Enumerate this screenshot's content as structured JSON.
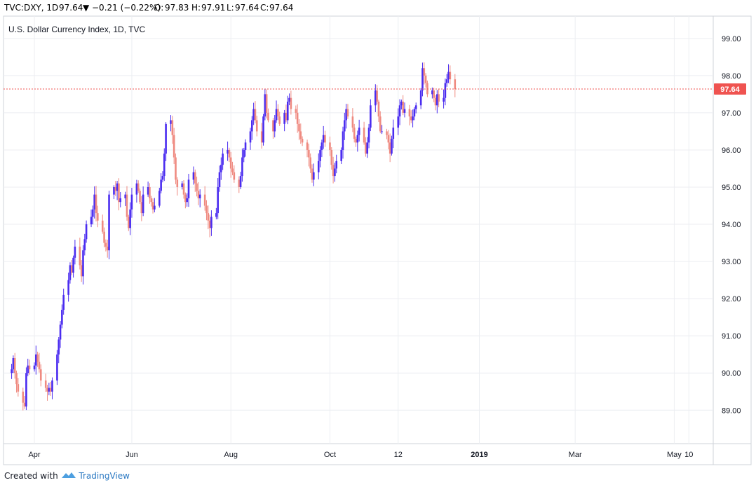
{
  "header": {
    "symbol": "TVC:DXY, 1D",
    "last": "97.64",
    "change_arrow": "▼",
    "change": "−0.21 (−0.22%)",
    "o_label": "O:",
    "o_value": "97.83",
    "h_label": "H:",
    "h_value": "97.91",
    "l_label": "L:",
    "l_value": "97.64",
    "c_label": "C:",
    "c_value": "97.64"
  },
  "footer": {
    "created_with": "Created with",
    "brand": "TradingView"
  },
  "colors": {
    "up": "#4a2cf0",
    "down": "#ef8a80",
    "last_price": "#ef5350",
    "grid": "#eceef2",
    "axis_text": "#131722"
  },
  "chart_data": {
    "type": "candlestick",
    "title": "U.S. Dollar Currency Index, 1D, TVC",
    "last_price": 97.64,
    "ylim": [
      88.1,
      99.6
    ],
    "y_ticks": [
      "89.00",
      "90.00",
      "91.00",
      "92.00",
      "93.00",
      "94.00",
      "95.00",
      "96.00",
      "97.00",
      "98.00",
      "99.00"
    ],
    "x_ticks": [
      {
        "label": "Apr",
        "date": "2018-04-02"
      },
      {
        "label": "Jun",
        "date": "2018-06-01"
      },
      {
        "label": "Aug",
        "date": "2018-08-01"
      },
      {
        "label": "Oct",
        "date": "2018-10-01"
      },
      {
        "label": "12",
        "date": "2018-11-12"
      },
      {
        "label": "2019",
        "date": "2019-01-01"
      },
      {
        "label": "Mar",
        "date": "2019-03-01"
      },
      {
        "label": "May",
        "date": "2019-05-01"
      },
      {
        "label": "10",
        "date": "2019-05-10"
      }
    ],
    "xlim": [
      "2018-03-14",
      "2019-05-25"
    ],
    "start_date": "2018-03-19",
    "closes": [
      90.1,
      90.4,
      90.0,
      89.7,
      89.5,
      89.2,
      89.1,
      90.0,
      90.2,
      90.1,
      90.2,
      90.5,
      90.3,
      90.1,
      89.8,
      89.6,
      89.5,
      89.6,
      89.5,
      89.8,
      90.5,
      90.9,
      91.3,
      91.7,
      92.1,
      92.5,
      92.9,
      92.7,
      93.1,
      93.4,
      92.9,
      92.6,
      93.3,
      93.6,
      94.0,
      94.2,
      94.4,
      94.8,
      94.3,
      94.1,
      93.8,
      93.5,
      93.4,
      93.3,
      94.8,
      95.0,
      94.9,
      95.1,
      94.6,
      94.7,
      94.8,
      94.2,
      93.9,
      94.4,
      94.8,
      95.1,
      94.9,
      94.6,
      94.3,
      94.8,
      95.0,
      94.7,
      94.6,
      94.4,
      94.5,
      94.9,
      95.2,
      95.3,
      95.9,
      96.7,
      96.8,
      96.4,
      95.8,
      95.2,
      95.0,
      95.1,
      94.8,
      94.6,
      94.7,
      95.2,
      95.4,
      95.1,
      94.9,
      94.7,
      94.8,
      94.5,
      94.3,
      94.1,
      93.9,
      94.2,
      94.3,
      95.0,
      95.4,
      95.6,
      95.9,
      96.0,
      95.8,
      95.5,
      95.4,
      95.2,
      95.0,
      95.3,
      95.8,
      96.0,
      96.2,
      96.5,
      96.8,
      97.1,
      96.8,
      96.5,
      96.2,
      96.9,
      97.5,
      97.0,
      96.8,
      96.5,
      96.8,
      97.1,
      96.9,
      96.7,
      97.0,
      96.8,
      97.3,
      97.4,
      97.1,
      97.0,
      96.7,
      96.5,
      96.3,
      96.2,
      96.0,
      95.8,
      95.5,
      95.2,
      95.4,
      95.7,
      96.0,
      96.2,
      96.4,
      96.2,
      96.0,
      95.6,
      95.3,
      95.5,
      95.7,
      96.0,
      96.5,
      96.8,
      97.1,
      96.9,
      96.6,
      96.3,
      96.2,
      96.4,
      96.6,
      96.2,
      95.9,
      96.2,
      96.6,
      97.2,
      97.6,
      97.3,
      96.9,
      96.5,
      96.5,
      96.4,
      96.2,
      95.9,
      96.3,
      96.6,
      96.9,
      97.2,
      97.3,
      97.0,
      97.1,
      96.9,
      96.8,
      96.9,
      97.1,
      97.2,
      97.6,
      98.2,
      98.0,
      97.8,
      97.5,
      97.6,
      97.4,
      97.2,
      97.5,
      97.3,
      97.4,
      97.8,
      97.9,
      98.1,
      97.9,
      97.64
    ]
  }
}
